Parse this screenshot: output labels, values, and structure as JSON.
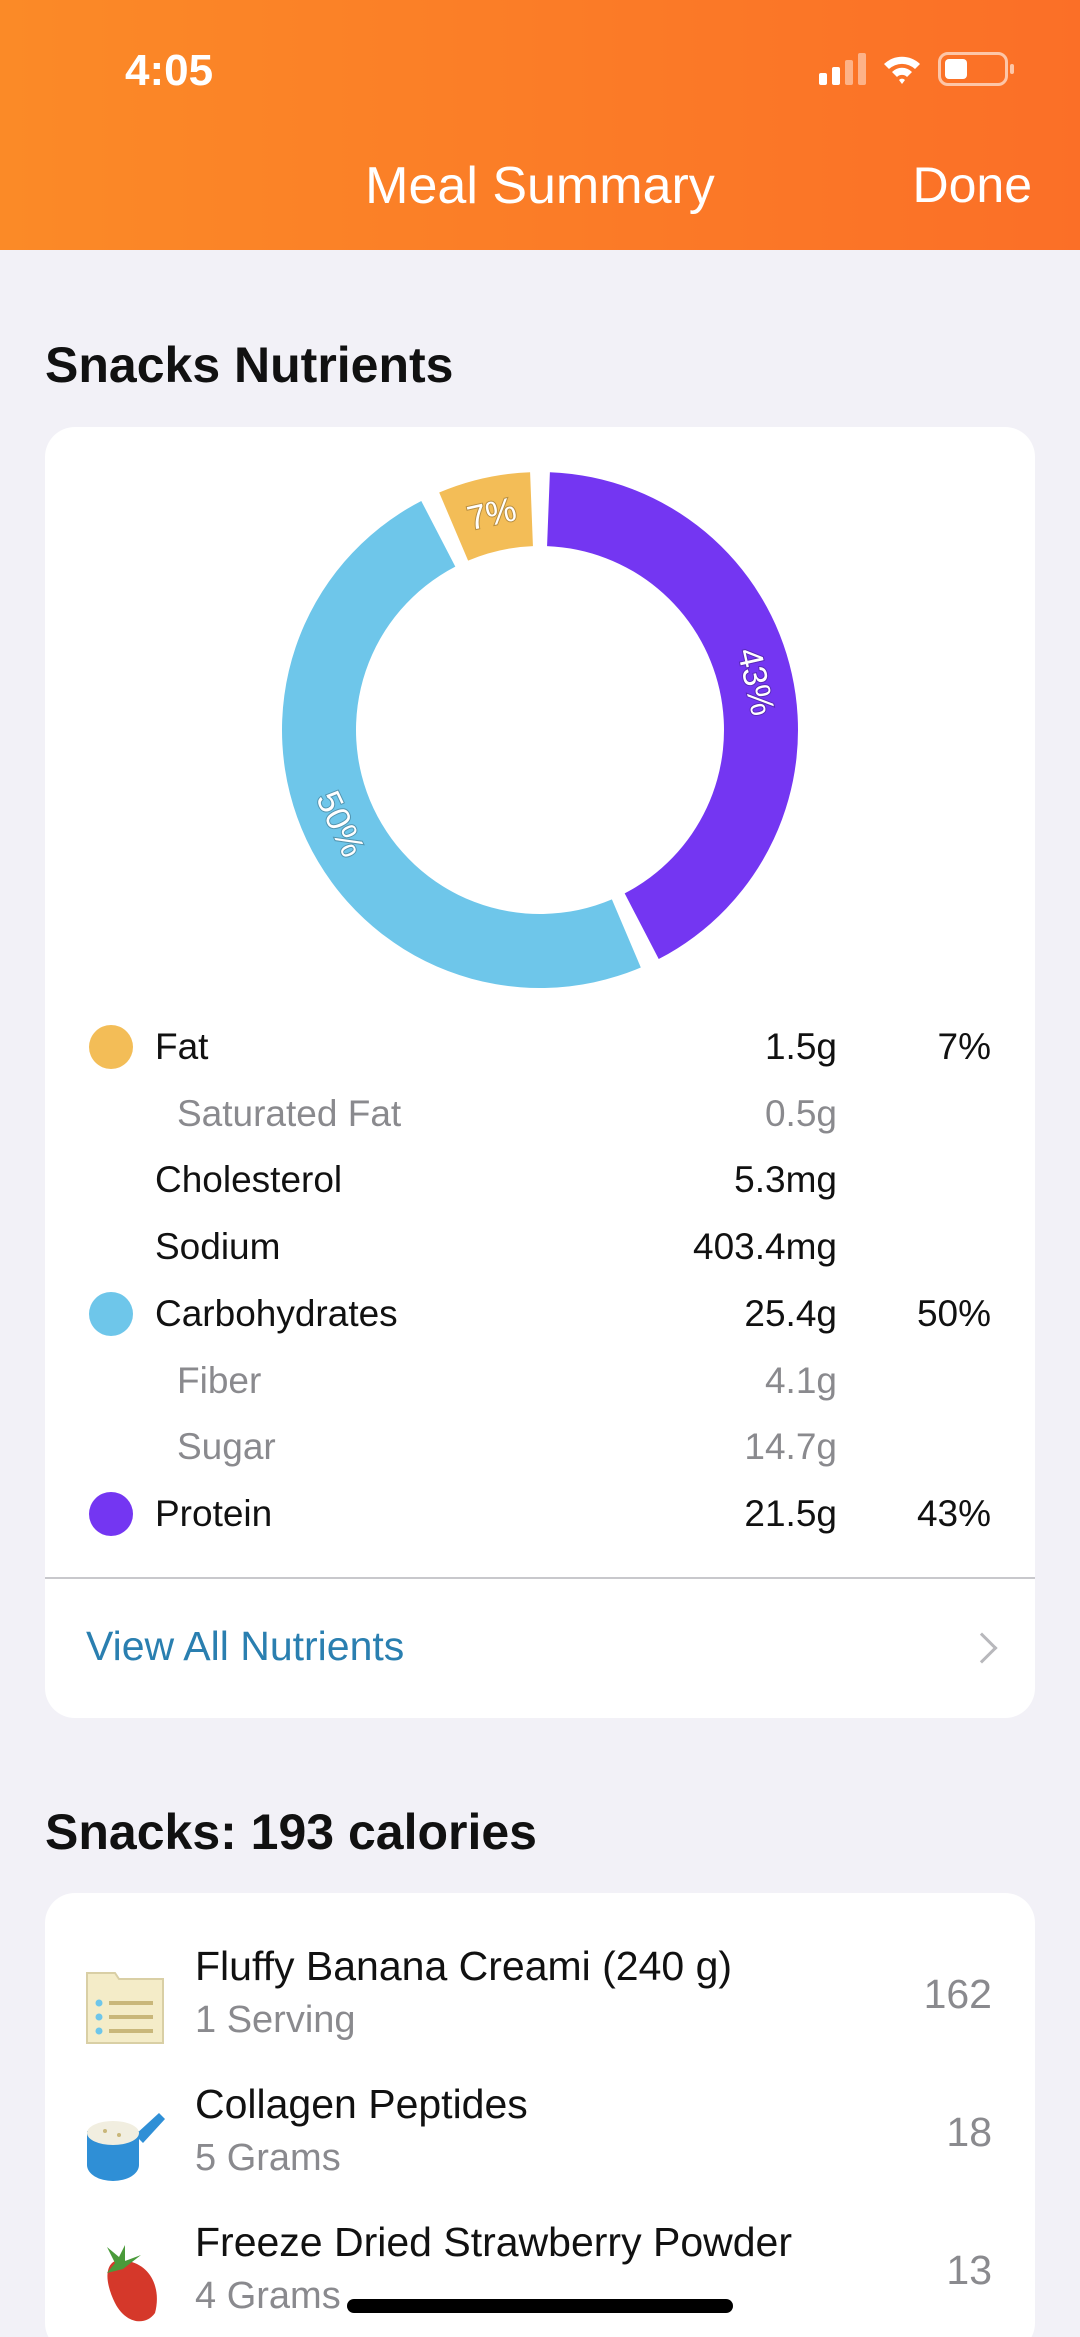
{
  "status_bar": {
    "time": "4:05",
    "icons": [
      "cellular-signal-icon",
      "wifi-icon",
      "battery-icon"
    ],
    "battery_level": 0.4
  },
  "header": {
    "title": "Meal Summary",
    "done_label": "Done",
    "color_start": "#fb8a27",
    "color_end": "#fb6f27"
  },
  "nutrients_section": {
    "title": "Snacks Nutrients",
    "legend": [
      {
        "label": "Fat",
        "value": "1.5g",
        "percent": "7%",
        "color": "#f3bd57",
        "sub": false
      },
      {
        "label": "Saturated Fat",
        "value": "0.5g",
        "percent": "",
        "color": "",
        "sub": true
      },
      {
        "label": "Cholesterol",
        "value": "5.3mg",
        "percent": "",
        "color": "",
        "sub": false
      },
      {
        "label": "Sodium",
        "value": "403.4mg",
        "percent": "",
        "color": "",
        "sub": false
      },
      {
        "label": "Carbohydrates",
        "value": "25.4g",
        "percent": "50%",
        "color": "#6ec6ea",
        "sub": false
      },
      {
        "label": "Fiber",
        "value": "4.1g",
        "percent": "",
        "color": "",
        "sub": true
      },
      {
        "label": "Sugar",
        "value": "14.7g",
        "percent": "",
        "color": "",
        "sub": true
      },
      {
        "label": "Protein",
        "value": "21.5g",
        "percent": "43%",
        "color": "#7436f2",
        "sub": false
      }
    ],
    "view_all_label": "View All Nutrients"
  },
  "chart_data": {
    "type": "pie",
    "donut": true,
    "slices": [
      {
        "name": "Protein",
        "value": 43,
        "label": "43%",
        "color": "#7436f2"
      },
      {
        "name": "Carbohydrates",
        "value": 50,
        "label": "50%",
        "color": "#6ec6ea"
      },
      {
        "name": "Fat",
        "value": 7,
        "label": "7%",
        "color": "#f3bd57"
      }
    ]
  },
  "foods_section": {
    "title": "Snacks: 193 calories",
    "items": [
      {
        "name": "Fluffy Banana Creami (240 g)",
        "quantity": "1 Serving",
        "calories": "162",
        "icon": "recipe-card-icon"
      },
      {
        "name": "Collagen Peptides",
        "quantity": "5 Grams",
        "calories": "18",
        "icon": "powder-scoop-icon"
      },
      {
        "name": "Freeze Dried Strawberry Powder",
        "quantity": "4 Grams",
        "calories": "13",
        "icon": "strawberry-icon"
      }
    ]
  }
}
